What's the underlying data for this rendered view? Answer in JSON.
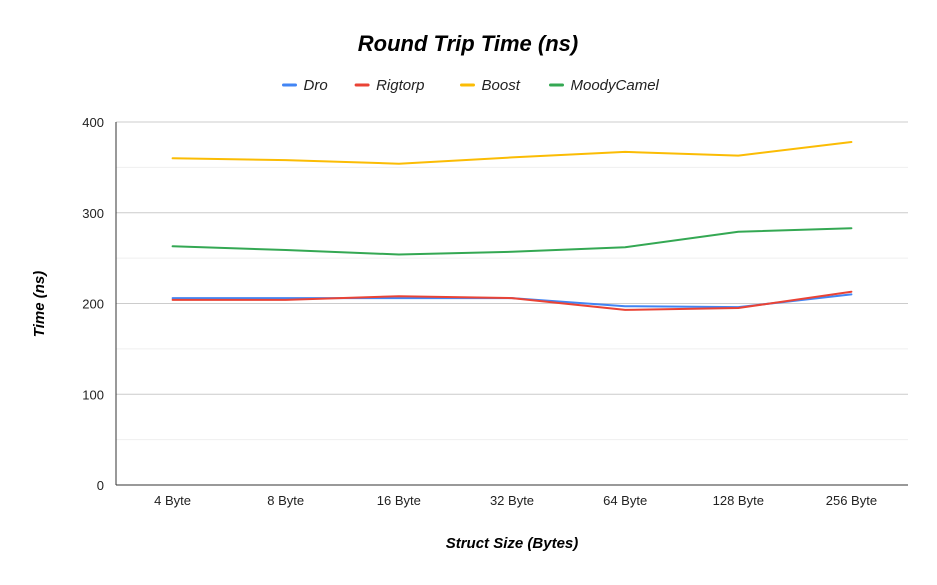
{
  "chart_data": {
    "type": "line",
    "title": "Round Trip Time (ns)",
    "xlabel": "Struct Size (Bytes)",
    "ylabel": "Time (ns)",
    "categories": [
      "4 Byte",
      "8 Byte",
      "16 Byte",
      "32 Byte",
      "64 Byte",
      "128 Byte",
      "256 Byte"
    ],
    "ylim": [
      0,
      400
    ],
    "yticks": [
      0,
      100,
      200,
      300,
      400
    ],
    "grid": true,
    "legend_position": "top",
    "series": [
      {
        "name": "Dro",
        "color": "#4285F4",
        "values": [
          206,
          206,
          206,
          206,
          197,
          196,
          210
        ]
      },
      {
        "name": "Rigtorp",
        "color": "#EA4335",
        "values": [
          204,
          204,
          208,
          206,
          193,
          195,
          213
        ]
      },
      {
        "name": "Boost",
        "color": "#FBBC04",
        "values": [
          360,
          358,
          354,
          361,
          367,
          363,
          378
        ]
      },
      {
        "name": "MoodyCamel",
        "color": "#34A853",
        "values": [
          263,
          259,
          254,
          257,
          262,
          279,
          283
        ]
      }
    ]
  }
}
